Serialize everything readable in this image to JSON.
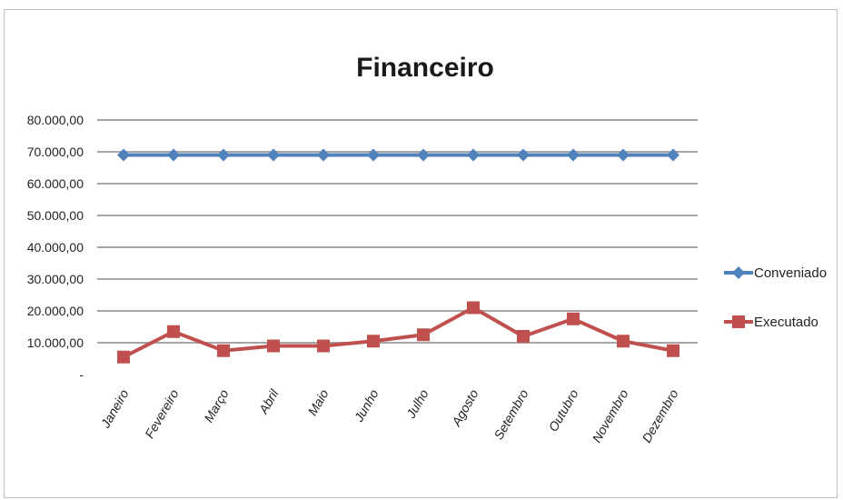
{
  "chart_data": {
    "type": "line",
    "title": "Financeiro",
    "xlabel": "",
    "ylabel": "",
    "ylim": [
      0,
      80000
    ],
    "yticks": [
      {
        "value": 0,
        "label": "-"
      },
      {
        "value": 10000,
        "label": "10.000,00"
      },
      {
        "value": 20000,
        "label": "20.000,00"
      },
      {
        "value": 30000,
        "label": "30.000,00"
      },
      {
        "value": 40000,
        "label": "40.000,00"
      },
      {
        "value": 50000,
        "label": "50.000,00"
      },
      {
        "value": 60000,
        "label": "60.000,00"
      },
      {
        "value": 70000,
        "label": "70.000,00"
      },
      {
        "value": 80000,
        "label": "80.000,00"
      }
    ],
    "categories": [
      "Janeiro",
      "Fevereiro",
      "Março",
      "Abril",
      "Maio",
      "Junho",
      "Julho",
      "Agosto",
      "Setembro",
      "Outubro",
      "Novembro",
      "Dezembro"
    ],
    "grid": true,
    "legend": "right",
    "series": [
      {
        "name": "Conveniado",
        "color": "#4f81bd",
        "marker": "diamond",
        "values": [
          69000,
          69000,
          69000,
          69000,
          69000,
          69000,
          69000,
          69000,
          69000,
          69000,
          69000,
          69000
        ]
      },
      {
        "name": "Executado",
        "color": "#c0504d",
        "marker": "square",
        "values": [
          5500,
          13500,
          7500,
          9000,
          9000,
          10500,
          12500,
          21000,
          12000,
          17500,
          10500,
          7500
        ]
      }
    ]
  }
}
